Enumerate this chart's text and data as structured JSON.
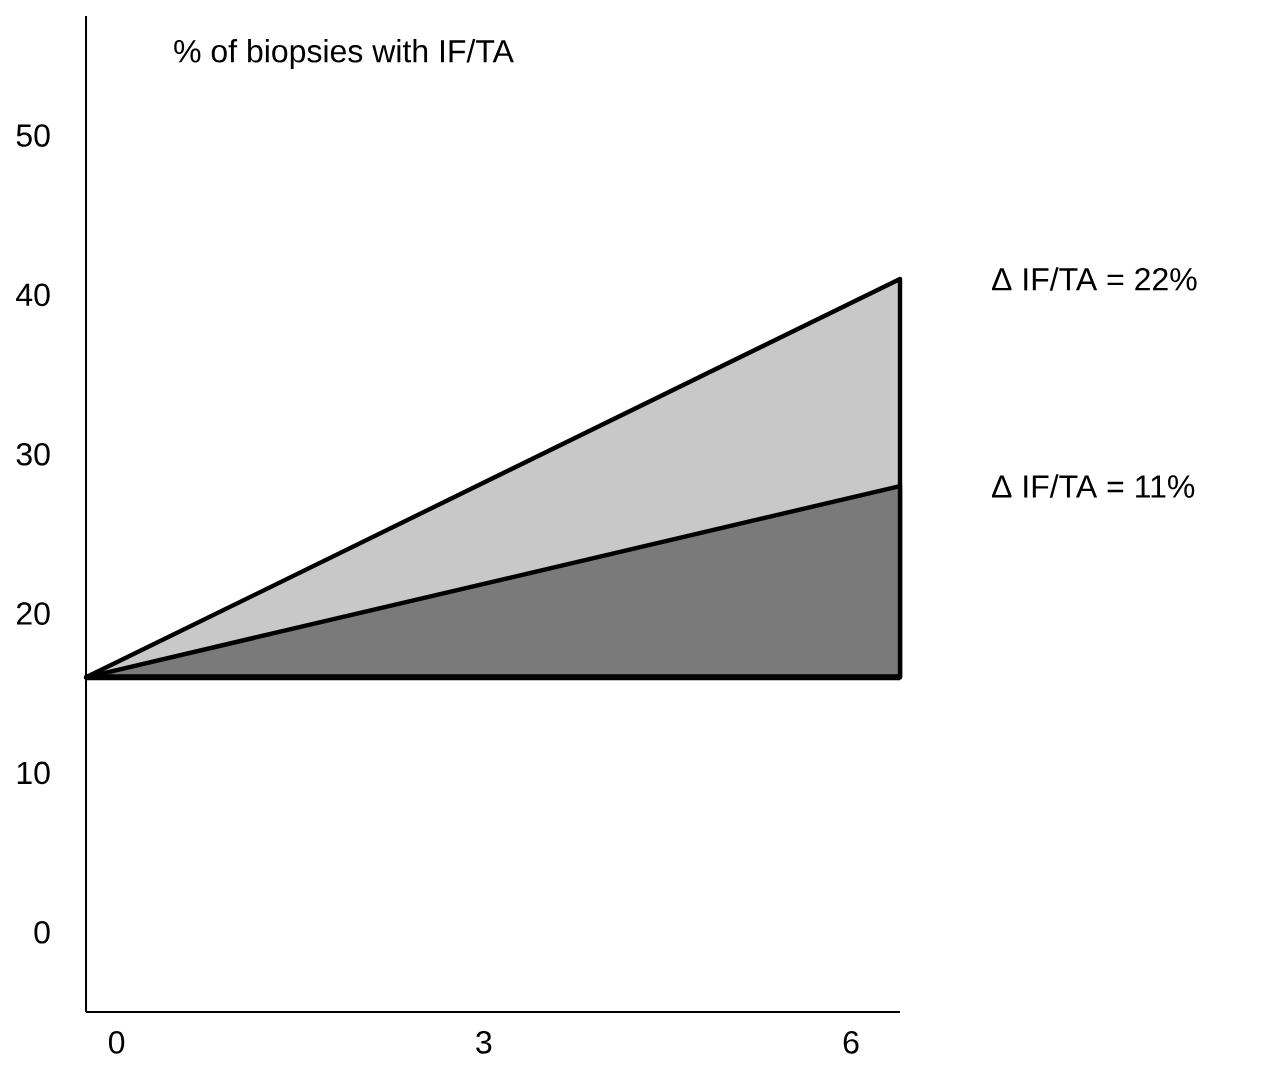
{
  "chart_data": {
    "type": "area",
    "title": "% of biopsies with IF/TA",
    "x": [
      -0.25,
      6.4
    ],
    "xlim": [
      -0.25,
      6.4
    ],
    "xticks": [
      0,
      3,
      6
    ],
    "ylim": [
      -5,
      57.5
    ],
    "yticks": [
      0,
      10,
      20,
      30,
      40,
      50
    ],
    "series": [
      {
        "color": "#c8c8c8",
        "values": [
          16,
          41
        ]
      },
      {
        "color": "#7a7a7a",
        "values": [
          16,
          28
        ]
      }
    ],
    "ref_lines": [
      {
        "axis": "y",
        "value": 16
      }
    ],
    "annotations": [
      {
        "text": "Δ IF/TA = 22%",
        "x": 6.4,
        "y": 41
      },
      {
        "text": "Δ IF/TA = 11%",
        "x": 6.4,
        "y": 28
      }
    ]
  }
}
